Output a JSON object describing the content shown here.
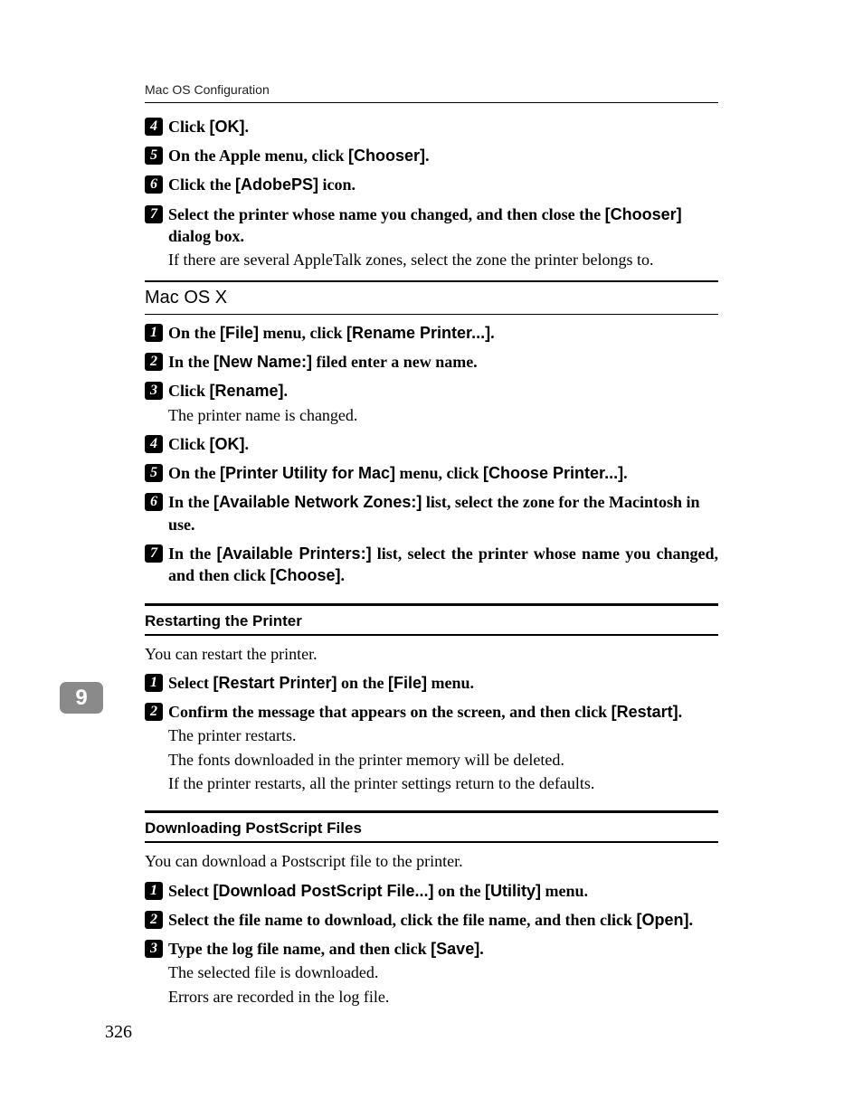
{
  "running_head": "Mac OS Configuration",
  "tab_number": "9",
  "page_number": "326",
  "sec1_steps": [
    {
      "n": "4",
      "parts": [
        "Click ",
        {
          "s": "[OK]"
        },
        "."
      ]
    },
    {
      "n": "5",
      "parts": [
        "On the Apple menu, click ",
        {
          "s": "[Chooser]"
        },
        "."
      ]
    },
    {
      "n": "6",
      "parts": [
        "Click the ",
        {
          "s": "[AdobePS]"
        },
        " icon."
      ]
    },
    {
      "n": "7",
      "parts": [
        "Select the printer whose name you changed, and then close the ",
        {
          "s": "[Chooser]"
        },
        " dialog box."
      ],
      "follow": [
        "If there are several AppleTalk zones, select the zone the printer belongs to."
      ]
    }
  ],
  "sec2_title": "Mac OS X",
  "sec2_steps": [
    {
      "n": "1",
      "parts": [
        "On the ",
        {
          "s": "[File]"
        },
        " menu, click ",
        {
          "s": "[Rename Printer...]"
        },
        "."
      ]
    },
    {
      "n": "2",
      "parts": [
        "In the ",
        {
          "s": "[New Name:]"
        },
        " filed enter a new name."
      ]
    },
    {
      "n": "3",
      "parts": [
        "Click ",
        {
          "s": "[Rename]"
        },
        "."
      ],
      "follow": [
        "The printer name is changed."
      ]
    },
    {
      "n": "4",
      "parts": [
        "Click ",
        {
          "s": "[OK]"
        },
        "."
      ]
    },
    {
      "n": "5",
      "parts": [
        "On the ",
        {
          "s": "[Printer Utility for Mac]"
        },
        " menu, click ",
        {
          "s": "[Choose Printer...]"
        },
        "."
      ]
    },
    {
      "n": "6",
      "parts": [
        "In the ",
        {
          "s": "[Available Network Zones:]"
        },
        " list, select the zone for the Macintosh in use."
      ]
    },
    {
      "n": "7",
      "justify": true,
      "parts": [
        "In the ",
        {
          "s": "[Available Printers:]"
        },
        " list, select the printer whose name you changed, and then click ",
        {
          "s": "[Choose]"
        },
        "."
      ]
    }
  ],
  "sec3_title": "Restarting the Printer",
  "sec3_intro": "You can restart the printer.",
  "sec3_steps": [
    {
      "n": "1",
      "parts": [
        "Select ",
        {
          "s": "[Restart Printer]"
        },
        " on the ",
        {
          "s": "[File]"
        },
        " menu."
      ]
    },
    {
      "n": "2",
      "parts": [
        "Confirm the message that appears on the screen, and then click ",
        {
          "s": "[Restart]"
        },
        "."
      ],
      "follow": [
        "The printer restarts.",
        "The fonts downloaded in the printer memory will be deleted.",
        "If the printer restarts, all the printer settings return to the defaults."
      ]
    }
  ],
  "sec4_title": "Downloading PostScript Files",
  "sec4_intro": "You can download a Postscript file to the printer.",
  "sec4_steps": [
    {
      "n": "1",
      "parts": [
        "Select ",
        {
          "s": "[Download PostScript File...]"
        },
        " on the ",
        {
          "s": "[Utility]"
        },
        " menu."
      ]
    },
    {
      "n": "2",
      "parts": [
        "Select the file name to download, click the file name, and then click ",
        {
          "s": "[Open]"
        },
        "."
      ]
    },
    {
      "n": "3",
      "parts": [
        "Type the log file name, and then click ",
        {
          "s": "[Save]"
        },
        "."
      ],
      "follow": [
        "The selected file is downloaded.",
        "Errors are recorded in the log file."
      ]
    }
  ]
}
